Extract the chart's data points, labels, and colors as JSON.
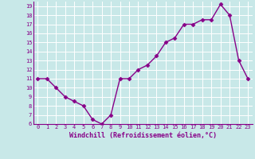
{
  "x": [
    0,
    1,
    2,
    3,
    4,
    5,
    6,
    7,
    8,
    9,
    10,
    11,
    12,
    13,
    14,
    15,
    16,
    17,
    18,
    19,
    20,
    21,
    22,
    23
  ],
  "y": [
    11,
    11,
    10,
    9,
    8.5,
    8,
    6.5,
    6,
    7,
    11,
    11,
    12,
    12.5,
    13.5,
    15,
    15.5,
    17,
    17,
    17.5,
    17.5,
    19.2,
    18,
    13,
    11
  ],
  "line_color": "#880088",
  "marker": "D",
  "marker_size": 2.5,
  "background_color": "#c8e8e8",
  "grid_color": "#aacccc",
  "xlabel": "Windchill (Refroidissement éolien,°C)",
  "ylim": [
    6,
    19.5
  ],
  "yticks": [
    6,
    7,
    8,
    9,
    10,
    11,
    12,
    13,
    14,
    15,
    16,
    17,
    18,
    19
  ],
  "xticks": [
    0,
    1,
    2,
    3,
    4,
    5,
    6,
    7,
    8,
    9,
    10,
    11,
    12,
    13,
    14,
    15,
    16,
    17,
    18,
    19,
    20,
    21,
    22,
    23
  ],
  "tick_color": "#880088",
  "label_color": "#880088",
  "spine_color": "#880088",
  "linewidth": 1.0,
  "xlabel_fontsize": 6.0,
  "tick_fontsize": 5.0,
  "xlabel_bold": true
}
